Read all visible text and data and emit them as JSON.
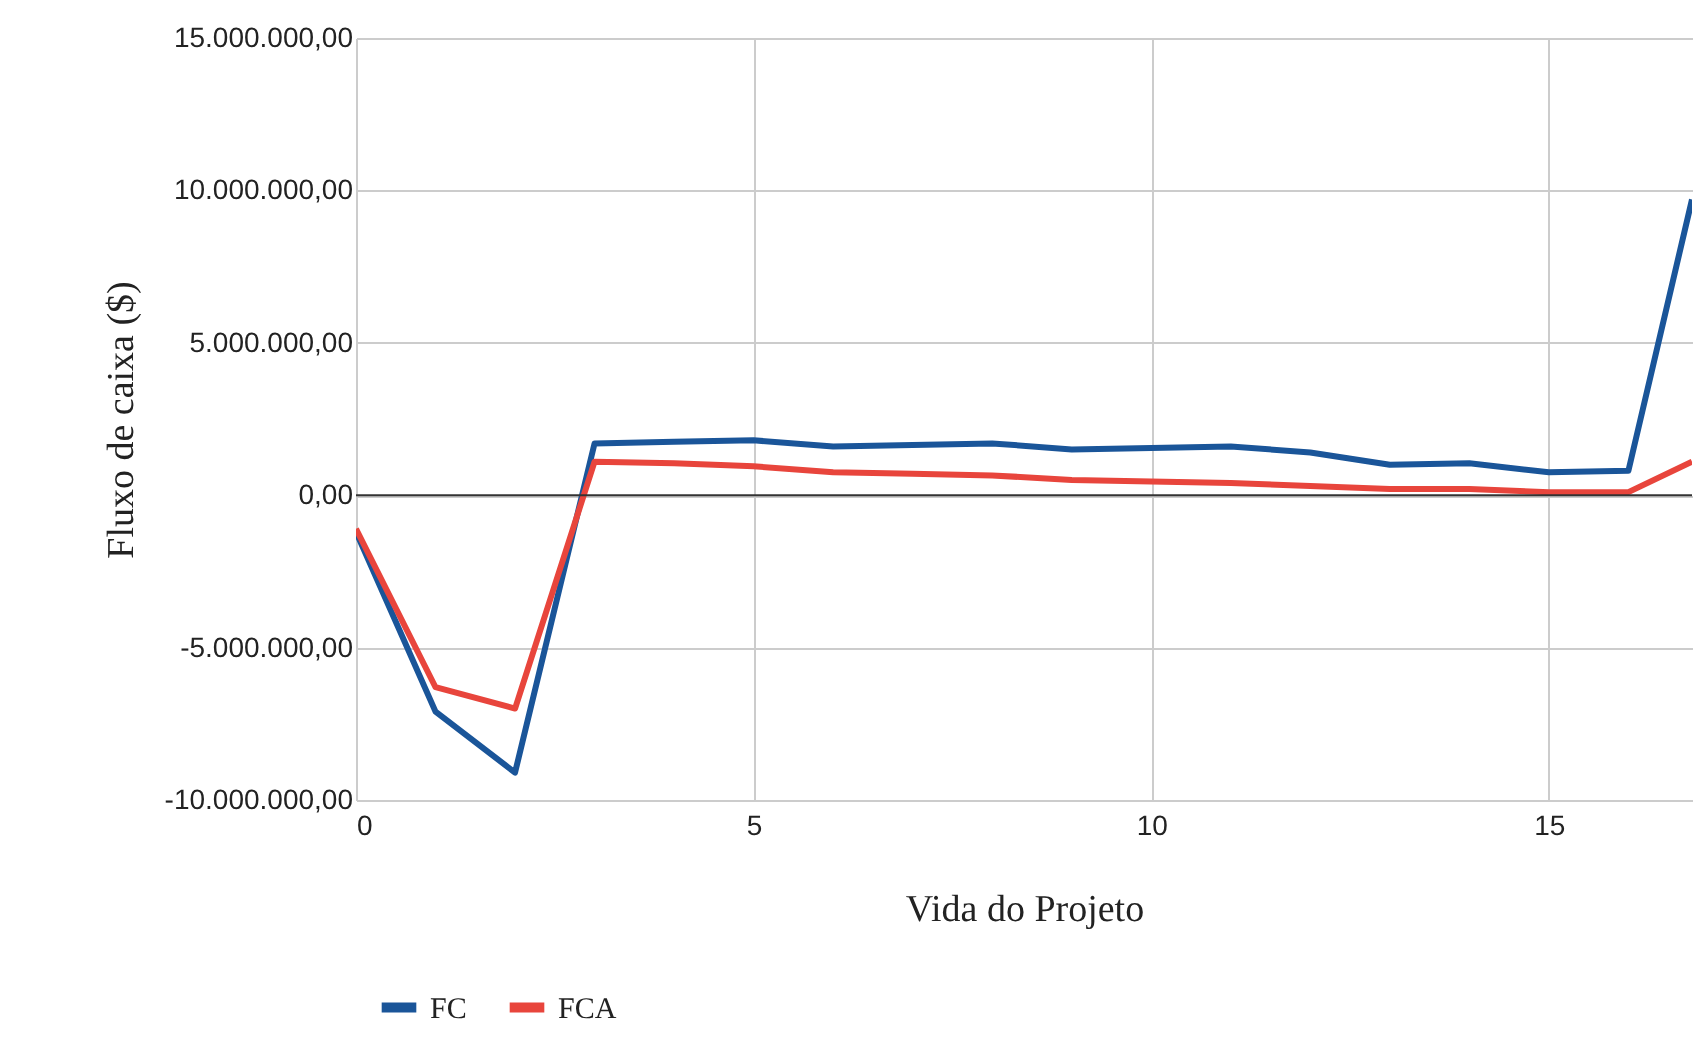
{
  "chart_data": {
    "type": "line",
    "xlabel": "Vida do Projeto",
    "ylabel": "Fluxo de caixa ($)",
    "x": [
      0,
      1,
      2,
      3,
      4,
      5,
      6,
      7,
      8,
      9,
      10,
      11,
      12,
      13,
      14,
      15,
      16,
      16.8
    ],
    "series": [
      {
        "name": "FC",
        "color": "#1a5599",
        "values": [
          -1200000,
          -7100000,
          -9100000,
          1700000,
          1750000,
          1800000,
          1600000,
          1650000,
          1700000,
          1500000,
          1550000,
          1600000,
          1400000,
          1000000,
          1050000,
          750000,
          800000,
          9700000
        ]
      },
      {
        "name": "FCA",
        "color": "#e8453c",
        "values": [
          -1100000,
          -6300000,
          -7000000,
          1100000,
          1050000,
          950000,
          750000,
          700000,
          650000,
          500000,
          450000,
          400000,
          300000,
          200000,
          200000,
          100000,
          100000,
          1100000
        ]
      }
    ],
    "xlim": [
      0,
      16.8
    ],
    "xticks": [
      0,
      5,
      10,
      15
    ],
    "ylim": [
      -10000000,
      15000000
    ],
    "yticks": [
      {
        "value": -10000000,
        "label": "-10.000.000,00"
      },
      {
        "value": -5000000,
        "label": "-5.000.000,00"
      },
      {
        "value": 0,
        "label": "0,00"
      },
      {
        "value": 5000000,
        "label": "5.000.000,00"
      },
      {
        "value": 10000000,
        "label": "10.000.000,00"
      },
      {
        "value": 15000000,
        "label": "15.000.000,00"
      }
    ],
    "ref_lines": [
      {
        "axis": "y",
        "value": 0,
        "color": "#333333"
      }
    ],
    "grid": true,
    "legend": "bottom",
    "marker": "none",
    "line_style": "solid"
  }
}
